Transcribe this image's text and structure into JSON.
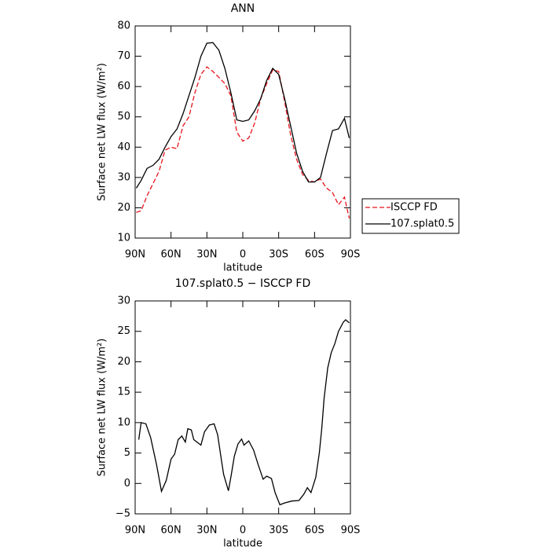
{
  "chart_data": [
    {
      "type": "line",
      "title": "ANN",
      "xlabel": "latitude",
      "ylabel": "Surface net LW flux (W/m²)",
      "x": [
        89,
        85,
        80,
        75,
        70,
        65,
        60,
        55,
        50,
        45,
        40,
        35,
        30,
        25,
        20,
        15,
        10,
        5,
        0,
        -5,
        -10,
        -15,
        -20,
        -25,
        -30,
        -35,
        -40,
        -45,
        -50,
        -55,
        -60,
        -65,
        -70,
        -75,
        -80,
        -85,
        -89
      ],
      "series": [
        {
          "name": "ISCCP FD",
          "color": "#e8141c",
          "linestyle": "dashed",
          "values": [
            18.5,
            19,
            24,
            28,
            32,
            39,
            40,
            39.5,
            47,
            50,
            58,
            64,
            66.5,
            65,
            63,
            61,
            57,
            45,
            42,
            43,
            48,
            56,
            61,
            65.5,
            65,
            55,
            44,
            36,
            31,
            29,
            28.5,
            29.5,
            26.5,
            25,
            21,
            23.5,
            16.5
          ]
        },
        {
          "name": "107.splat0.5",
          "color": "#000000",
          "linestyle": "solid",
          "values": [
            26.5,
            29,
            33,
            34,
            36,
            40,
            43.5,
            46,
            51,
            57,
            63,
            70,
            74.3,
            74.5,
            72,
            66,
            58,
            49,
            48.5,
            49,
            52,
            56,
            62,
            66,
            64,
            56,
            47,
            38,
            32,
            28.5,
            28.5,
            30,
            38,
            45.5,
            46,
            49.5,
            43
          ]
        }
      ],
      "xlim": [
        90,
        -90
      ],
      "xticks": [
        {
          "value": 90,
          "label": "90N"
        },
        {
          "value": 60,
          "label": "60N"
        },
        {
          "value": 30,
          "label": "30N"
        },
        0,
        {
          "value": -30,
          "label": "30S"
        },
        {
          "value": -60,
          "label": "60S"
        },
        {
          "value": -90,
          "label": "90S"
        }
      ],
      "ylim": [
        10,
        80
      ],
      "yticks": [
        10,
        20,
        30,
        40,
        50,
        60,
        70,
        80
      ],
      "legend": "right"
    },
    {
      "type": "line",
      "title": "107.splat0.5 − ISCCP FD",
      "xlabel": "latitude",
      "ylabel": "Surface net LW flux (W/m²)",
      "x": [
        87,
        85,
        81,
        77,
        72,
        68,
        64,
        60,
        57,
        54,
        51,
        48,
        46,
        43,
        41,
        35,
        32,
        28,
        24,
        21,
        18,
        16,
        12,
        10,
        7,
        4,
        1,
        -1,
        -5,
        -9,
        -13,
        -17,
        -20,
        -24,
        -27,
        -31,
        -35,
        -41,
        -47,
        -51,
        -54,
        -57,
        -61,
        -64,
        -66,
        -68,
        -71,
        -74,
        -77,
        -80,
        -84,
        -86,
        -89
      ],
      "series": [
        {
          "color": "#000000",
          "linestyle": "solid",
          "values": [
            7.2,
            10,
            9.8,
            7.5,
            3,
            -1.3,
            0.5,
            4,
            4.8,
            7.2,
            7.8,
            6.8,
            9,
            8.8,
            7.2,
            6.3,
            8.5,
            9.6,
            9.8,
            8,
            4,
            1.5,
            -1.2,
            1,
            4.5,
            6.5,
            7.3,
            6.3,
            7,
            5.5,
            3,
            0.7,
            1.2,
            0.8,
            -1.5,
            -3.5,
            -3.2,
            -2.9,
            -2.8,
            -1.8,
            -0.7,
            -1.5,
            1,
            5,
            9,
            14,
            19,
            21.5,
            23,
            25,
            26.5,
            26.9,
            26.4
          ]
        }
      ],
      "xlim": [
        90,
        -90
      ],
      "xticks": [
        {
          "value": 90,
          "label": "90N"
        },
        {
          "value": 60,
          "label": "60N"
        },
        {
          "value": 30,
          "label": "30N"
        },
        0,
        {
          "value": -30,
          "label": "30S"
        },
        {
          "value": -60,
          "label": "60S"
        },
        {
          "value": -90,
          "label": "90S"
        }
      ],
      "ylim": [
        -5,
        30
      ],
      "yticks": [
        {
          "value": -5,
          "label": "−5"
        },
        0,
        5,
        10,
        15,
        20,
        25,
        30
      ]
    }
  ]
}
